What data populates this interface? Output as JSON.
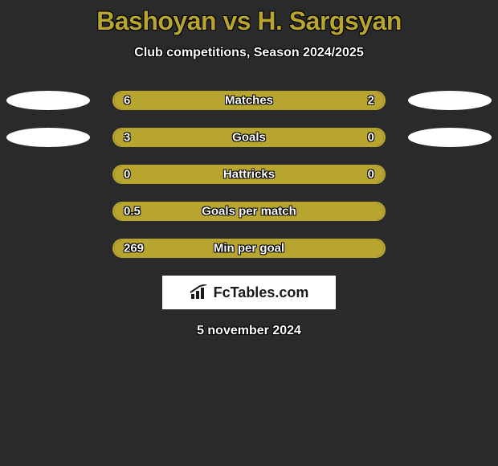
{
  "title": "Bashoyan vs H. Sargsyan",
  "subtitle": "Club competitions, Season 2024/2025",
  "logo_text": "FcTables.com",
  "date": "5 november 2024",
  "colors": {
    "bar_fill": "#b8a530",
    "bar_border": "#b8a530",
    "background": "#2a2a2a",
    "ellipse": "#ffffff",
    "text": "#ffffff"
  },
  "rows": [
    {
      "label": "Matches",
      "left_value": "6",
      "right_value": "2",
      "left_pct": 73,
      "right_pct": 27,
      "gap_pct": 0,
      "show_left_ellipse": true,
      "show_right_ellipse": true
    },
    {
      "label": "Goals",
      "left_value": "3",
      "right_value": "0",
      "left_pct": 78,
      "right_pct": 22,
      "gap_pct": 0,
      "show_left_ellipse": true,
      "show_right_ellipse": true
    },
    {
      "label": "Hattricks",
      "left_value": "0",
      "right_value": "0",
      "left_pct": 0,
      "right_pct": 0,
      "gap_pct": 0,
      "full": true,
      "show_left_ellipse": false,
      "show_right_ellipse": false
    },
    {
      "label": "Goals per match",
      "left_value": "0.5",
      "right_value": "",
      "left_pct": 100,
      "right_pct": 0,
      "gap_pct": 0,
      "full": true,
      "show_left_ellipse": false,
      "show_right_ellipse": false
    },
    {
      "label": "Min per goal",
      "left_value": "269",
      "right_value": "",
      "left_pct": 100,
      "right_pct": 0,
      "gap_pct": 0,
      "full": true,
      "show_left_ellipse": false,
      "show_right_ellipse": false
    }
  ]
}
